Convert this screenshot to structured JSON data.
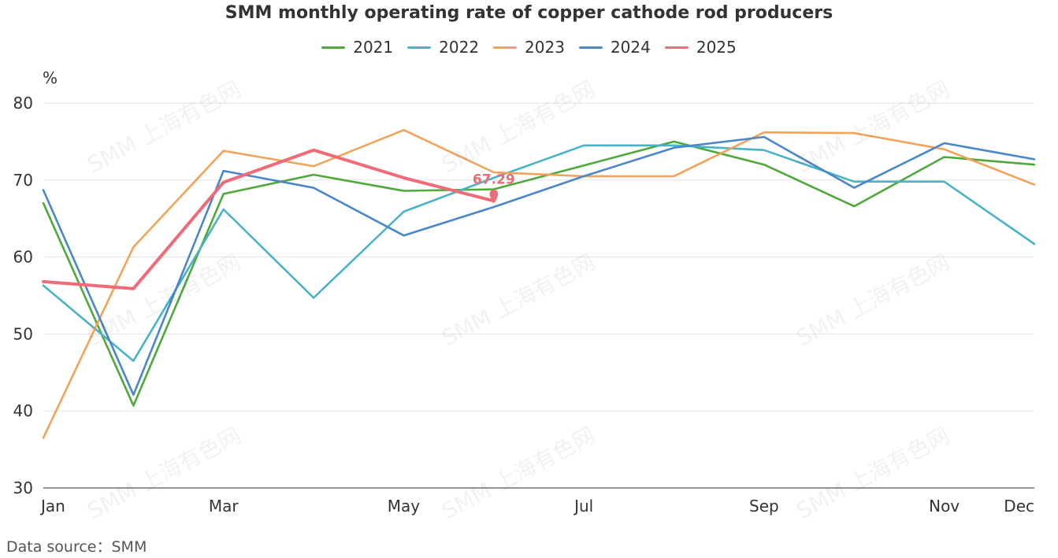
{
  "chart_data": {
    "type": "line",
    "title": "SMM monthly operating rate of copper cathode rod producers",
    "ylabel": "%",
    "xlabel": "",
    "ylim": [
      30,
      80
    ],
    "yticks": [
      30,
      40,
      50,
      60,
      70,
      80
    ],
    "x": [
      "Jan",
      "Feb",
      "Mar",
      "Apr",
      "May",
      "Jun",
      "Jul",
      "Aug",
      "Sep",
      "Oct",
      "Nov",
      "Dec"
    ],
    "xtick_labels_shown": [
      "Jan",
      "",
      "Mar",
      "",
      "May",
      "",
      "Jul",
      "",
      "Sep",
      "",
      "Nov",
      "Dec"
    ],
    "grid": true,
    "legend_position": "top-center",
    "series": [
      {
        "name": "2021",
        "color": "#4ea83a",
        "values": [
          67.0,
          40.7,
          68.2,
          70.7,
          68.6,
          68.8,
          71.9,
          75.0,
          72.0,
          66.6,
          73.0,
          72.0
        ]
      },
      {
        "name": "2022",
        "color": "#49b3c5",
        "values": [
          56.3,
          46.5,
          66.2,
          54.7,
          65.9,
          70.3,
          74.5,
          74.5,
          73.9,
          69.8,
          69.8,
          61.7
        ]
      },
      {
        "name": "2023",
        "color": "#f2a35a",
        "values": [
          36.5,
          61.3,
          73.8,
          71.8,
          76.5,
          71.0,
          70.5,
          70.5,
          76.2,
          76.1,
          74.0,
          69.4
        ]
      },
      {
        "name": "2024",
        "color": "#4a86c8",
        "values": [
          68.7,
          42.1,
          71.2,
          69.0,
          62.8,
          66.5,
          70.5,
          74.2,
          75.6,
          69.0,
          74.8,
          72.7
        ]
      },
      {
        "name": "2025",
        "color": "#f06a78",
        "values": [
          56.8,
          55.9,
          69.7,
          73.9,
          70.3,
          67.29,
          null,
          null,
          null,
          null,
          null,
          null
        ]
      }
    ],
    "annotations": [
      {
        "series": "2025",
        "x": "Jun",
        "value": 67.29,
        "label": "67.29"
      }
    ]
  },
  "footer": {
    "source": "Data source：SMM"
  },
  "watermark_text": "SMM 上海有色网"
}
